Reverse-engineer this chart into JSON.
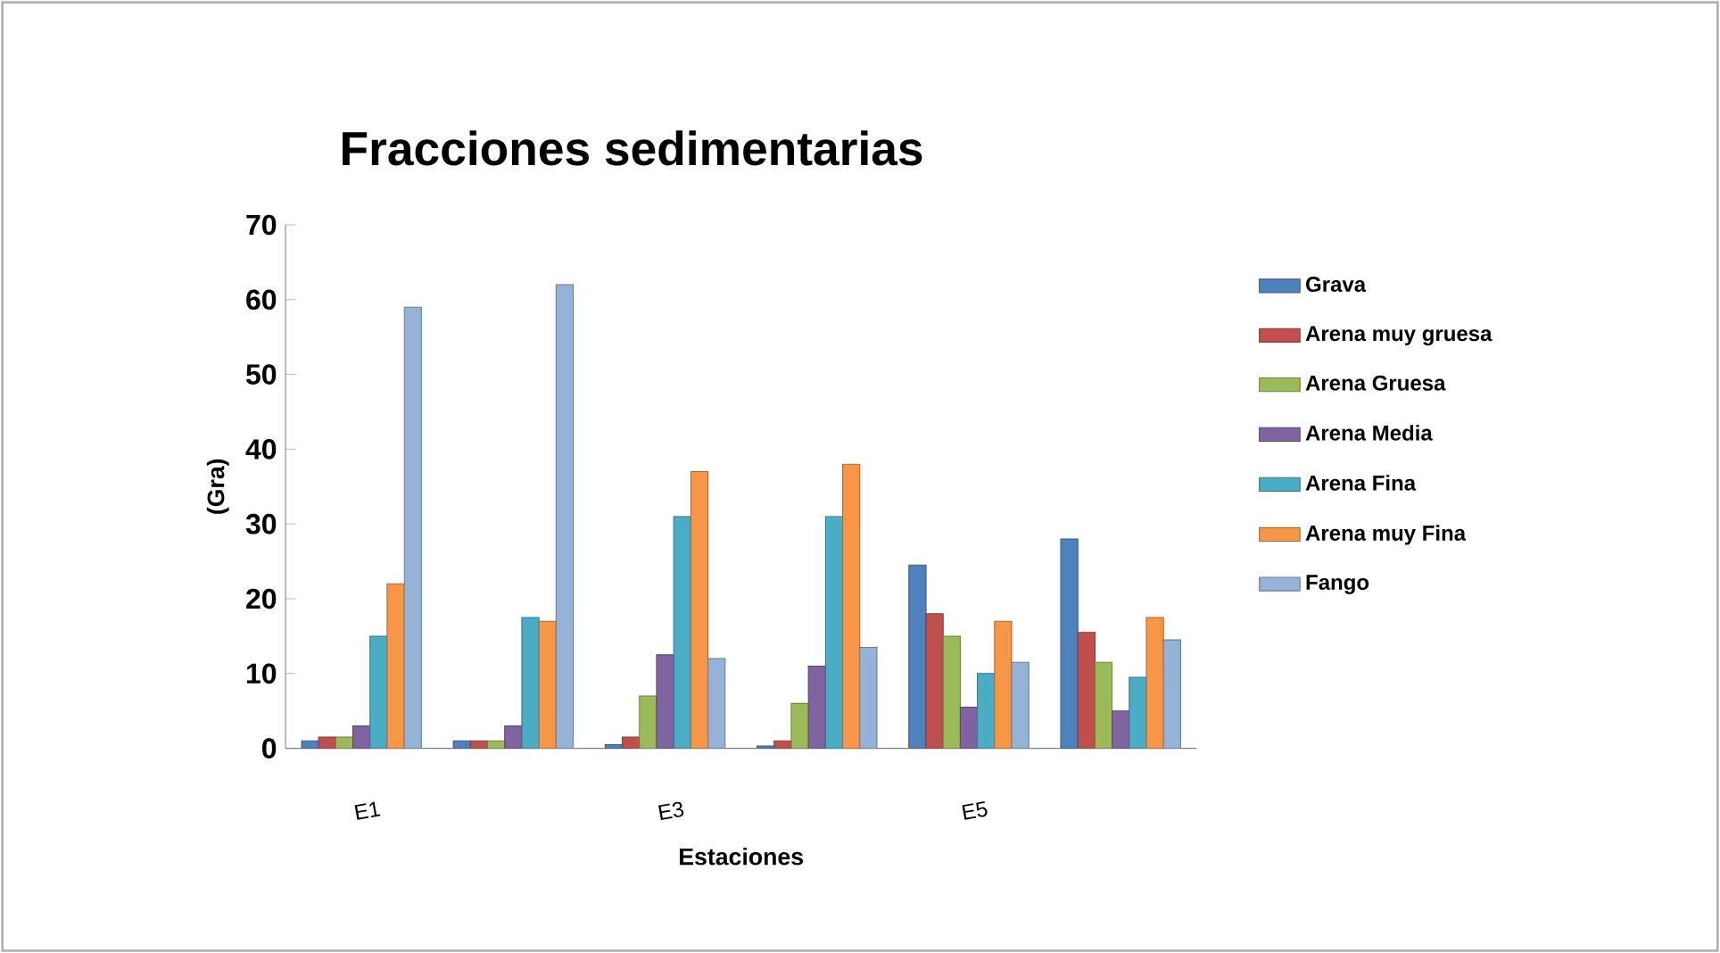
{
  "chart_data": {
    "type": "bar",
    "title": "Fracciones sedimentarias",
    "xlabel": "Estaciones",
    "ylabel": "(Gra)",
    "categories": [
      "E1",
      null,
      "E3",
      null,
      "E5",
      null
    ],
    "series": [
      {
        "name": "Grava",
        "color": "#4f81bd",
        "values": [
          1,
          1,
          0.5,
          0.3,
          24.5,
          28
        ]
      },
      {
        "name": "Arena muy gruesa",
        "color": "#c0504d",
        "values": [
          1.5,
          1,
          1.5,
          1,
          18,
          15.5
        ]
      },
      {
        "name": "Arena Gruesa",
        "color": "#9bbb59",
        "values": [
          1.5,
          1,
          7,
          6,
          15,
          11.5
        ]
      },
      {
        "name": "Arena Media",
        "color": "#8064a2",
        "values": [
          3,
          3,
          12.5,
          11,
          5.5,
          5
        ]
      },
      {
        "name": "Arena Fina",
        "color": "#4bacc6",
        "values": [
          15,
          17.5,
          31,
          31,
          10,
          9.5
        ]
      },
      {
        "name": "Arena muy Fina",
        "color": "#f79646",
        "values": [
          22,
          17,
          37,
          38,
          17,
          17.5
        ]
      },
      {
        "name": "Fango",
        "color": "#95b3d7",
        "values": [
          59,
          62,
          12,
          13.5,
          11.5,
          14.5
        ]
      }
    ],
    "ylim": [
      0,
      70
    ],
    "yticks": [
      0,
      10,
      20,
      30,
      40,
      50,
      60,
      70
    ],
    "grid": false,
    "legend": "right"
  }
}
